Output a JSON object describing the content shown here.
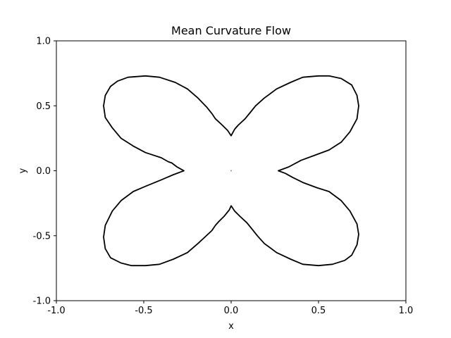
{
  "chart_data": {
    "type": "line",
    "title": "Mean Curvature Flow",
    "xlabel": "x",
    "ylabel": "y",
    "xlim": [
      -1.0,
      1.0
    ],
    "ylim": [
      -1.0,
      1.0
    ],
    "xticks": [
      -1.0,
      -0.5,
      0.0,
      0.5,
      1.0
    ],
    "yticks": [
      -1.0,
      -0.5,
      0.0,
      0.5,
      1.0
    ],
    "xtick_labels": [
      "-1.0",
      "-0.5",
      "0.0",
      "0.5",
      "1.0"
    ],
    "ytick_labels": [
      "-1.0",
      "-0.5",
      "0.0",
      "0.5",
      "1.0"
    ],
    "grid": false,
    "series": [
      {
        "color": "#000000",
        "closed": true,
        "points": [
          [
            0.27,
            0.0
          ],
          [
            0.33,
            0.03
          ],
          [
            0.4,
            0.08
          ],
          [
            0.48,
            0.12
          ],
          [
            0.56,
            0.16
          ],
          [
            0.63,
            0.22
          ],
          [
            0.68,
            0.3
          ],
          [
            0.72,
            0.4
          ],
          [
            0.73,
            0.5
          ],
          [
            0.72,
            0.58
          ],
          [
            0.69,
            0.66
          ],
          [
            0.63,
            0.71
          ],
          [
            0.56,
            0.73
          ],
          [
            0.5,
            0.73
          ],
          [
            0.41,
            0.72
          ],
          [
            0.34,
            0.68
          ],
          [
            0.26,
            0.63
          ],
          [
            0.19,
            0.56
          ],
          [
            0.14,
            0.5
          ],
          [
            0.11,
            0.45
          ],
          [
            0.08,
            0.4
          ],
          [
            0.04,
            0.35
          ],
          [
            0.02,
            0.32
          ],
          [
            0.0,
            0.27
          ],
          [
            -0.02,
            0.31
          ],
          [
            -0.05,
            0.35
          ],
          [
            -0.09,
            0.4
          ],
          [
            -0.11,
            0.44
          ],
          [
            -0.14,
            0.49
          ],
          [
            -0.19,
            0.56
          ],
          [
            -0.25,
            0.63
          ],
          [
            -0.32,
            0.68
          ],
          [
            -0.41,
            0.72
          ],
          [
            -0.49,
            0.73
          ],
          [
            -0.59,
            0.72
          ],
          [
            -0.65,
            0.69
          ],
          [
            -0.69,
            0.65
          ],
          [
            -0.72,
            0.58
          ],
          [
            -0.73,
            0.5
          ],
          [
            -0.72,
            0.41
          ],
          [
            -0.68,
            0.33
          ],
          [
            -0.63,
            0.25
          ],
          [
            -0.56,
            0.19
          ],
          [
            -0.49,
            0.14
          ],
          [
            -0.4,
            0.1
          ],
          [
            -0.36,
            0.07
          ],
          [
            -0.34,
            0.06
          ],
          [
            -0.31,
            0.03
          ],
          [
            -0.27,
            0.0
          ],
          [
            -0.33,
            -0.03
          ],
          [
            -0.4,
            -0.07
          ],
          [
            -0.49,
            -0.12
          ],
          [
            -0.56,
            -0.16
          ],
          [
            -0.63,
            -0.23
          ],
          [
            -0.68,
            -0.31
          ],
          [
            -0.72,
            -0.42
          ],
          [
            -0.73,
            -0.51
          ],
          [
            -0.72,
            -0.6
          ],
          [
            -0.69,
            -0.67
          ],
          [
            -0.63,
            -0.71
          ],
          [
            -0.57,
            -0.73
          ],
          [
            -0.49,
            -0.73
          ],
          [
            -0.41,
            -0.72
          ],
          [
            -0.33,
            -0.68
          ],
          [
            -0.25,
            -0.63
          ],
          [
            -0.19,
            -0.56
          ],
          [
            -0.15,
            -0.51
          ],
          [
            -0.11,
            -0.46
          ],
          [
            -0.09,
            -0.42
          ],
          [
            -0.07,
            -0.39
          ],
          [
            -0.04,
            -0.35
          ],
          [
            -0.01,
            -0.3
          ],
          [
            0.0,
            -0.27
          ],
          [
            0.02,
            -0.31
          ],
          [
            0.05,
            -0.35
          ],
          [
            0.09,
            -0.4
          ],
          [
            0.12,
            -0.45
          ],
          [
            0.15,
            -0.5
          ],
          [
            0.19,
            -0.56
          ],
          [
            0.26,
            -0.63
          ],
          [
            0.34,
            -0.68
          ],
          [
            0.41,
            -0.72
          ],
          [
            0.5,
            -0.73
          ],
          [
            0.58,
            -0.72
          ],
          [
            0.65,
            -0.69
          ],
          [
            0.69,
            -0.65
          ],
          [
            0.72,
            -0.57
          ],
          [
            0.73,
            -0.49
          ],
          [
            0.72,
            -0.41
          ],
          [
            0.68,
            -0.31
          ],
          [
            0.63,
            -0.23
          ],
          [
            0.56,
            -0.16
          ],
          [
            0.49,
            -0.13
          ],
          [
            0.41,
            -0.09
          ],
          [
            0.35,
            -0.05
          ],
          [
            0.31,
            -0.02
          ]
        ]
      }
    ],
    "markers": [
      {
        "x": 0.0,
        "y": 0.0,
        "color": "#888888"
      }
    ]
  }
}
